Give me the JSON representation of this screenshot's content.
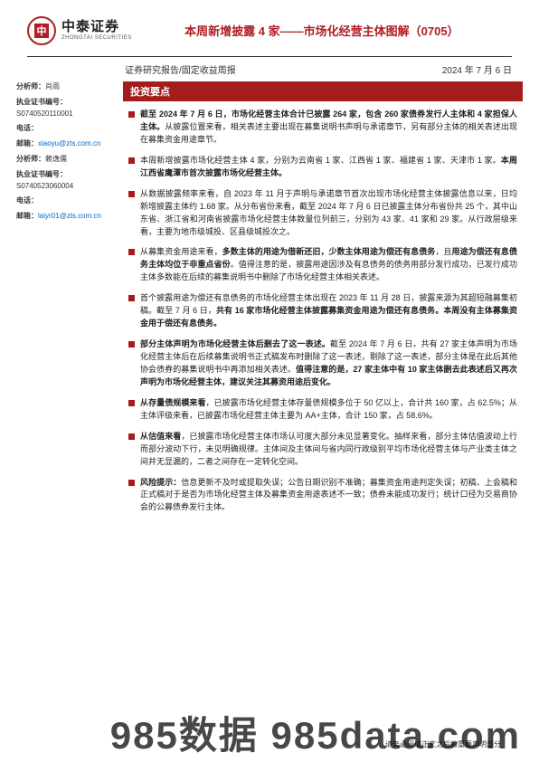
{
  "logo": {
    "cn": "中泰证券",
    "en": "ZHONGTAI SECURITIES"
  },
  "title": "本周新增披露 4 家——市场化经营主体图解（0705）",
  "subhead": {
    "left": "证券研究报告/固定收益周报",
    "right": "2024 年 7 月 6 日"
  },
  "sidebar": {
    "analyst1": {
      "name_label": "分析师：",
      "name": "肖雨",
      "cert_label": "执业证书编号：",
      "cert": "S0740520110001",
      "tel_label": "电话：",
      "email_label": "邮箱：",
      "email": "xiaoyu@zts.com.cn"
    },
    "analyst2": {
      "name_label": "分析师：",
      "name": "赖逸儒",
      "cert_label": "执业证书编号：",
      "cert": "S0740523060004",
      "tel_label": "电话：",
      "email_label": "邮箱：",
      "email": "laiyr01@zts.com.cn"
    }
  },
  "section_title": "投资要点",
  "bullets": [
    "<span class='bold'>截至 2024 年 7 月 6 日，市场化经营主体合计已披露 264 家，包含 260 家债券发行人主体和 4 家担保人主体。</span>从披露位置来看，相关表述主要出现在募集说明书声明与承诺章节，另有部分主体的相关表述出现在募集资金用途章节。",
    "本周新增披露市场化经营主体 4 家，分别为云南省 1 家、江西省 1 家、福建省 1 家、天津市 1 家。<span class='bold'>本周江西省鹰潭市首次披露市场化经营主体。</span>",
    "从数据披露频率来看，自 2023 年 11 月于声明与承诺章节首次出现市场化经营主体披露信息以来，日均新增披露主体约 1.68 家。从分布省份来看，截至 2024 年 7 月 6 日已披露主体分布省份共 25 个，其中山东省、浙江省和河南省披露市场化经营主体数量位列前三，分别为 43 家、41 家和 29 家。从行政层级来看，主要为地市级城投、区县级城投次之。",
    "从募集资金用途来看，<span class='bold'>多数主体的用途为借新还旧，少数主体用途为偿还有息债务</span>，且<span class='bold'>用途为偿还有息债务主体均位于非重点省份</span>。值得注意的是，披露用途因涉及有息债务的债务用部分发行成功，已发行成功主体多数能在后续的募集说明书中删除了市场化经营主体相关表述。",
    "首个披露用途为偿还有息债务的市场化经营主体出现在 2023 年 11 月 28 日，披露来源为其超短融募集初稿。截至 7 月 6 日，<span class='bold'>共有 16 家市场化经营主体披露募集资金用途为偿还有息债务。本周没有主体募集资金用于偿还有息债务。</span>",
    "<span class='bold'>部分主体声明为市场化经营主体后删去了这一表述。</span>截至 2024 年 7 月 6 日，共有 27 家主体声明为市场化经营主体后在后续募集说明书正式稿发布时删除了这一表述，剔除了这一表述，部分主体是在此后其他协会债券的募集说明书中再添加相关表述。<span class='bold'>值得注意的是，27 家主体中有 10 家主体删去此表述后又再次声明为市场化经营主体，建议关注其募资用途后变化。</span>",
    "<span class='bold'>从存量债规模来看</span>，已披露市场化经营主体存量债规模多位于 50 亿以上，合计共 160 家，占 62.5%；从主体评级来看，已披露市场化经营主体主要为 AA+主体，合计 150 家，占 58.6%。",
    "<span class='bold'>从估值来看</span>，已披露市场化经营主体市场认可度大部分未见显著变化。抽样来看，部分主体估值波动上行而部分波动下行，未见明确规律。主体间及主体间与省内同行政级别平均市场化经营主体与产业类主体之间并无显漏的，二者之间存在一定转化空间。",
    "<span class='bold'>风险提示：</span>信息更新不及时或提取失误；公告日期识别不准确；募集资金用途判定失误；初稿、上会稿和正式稿对于是否为市场化经营主体及募集资金用途表述不一致；债券未能成功发行；统计口径为交易商协会的公募债券发行主体。"
  ],
  "footer_note": "请务必阅读正文之后的重要声明部分",
  "watermark": "985数据 985data.com",
  "colors": {
    "brand_red": "#a51c1c",
    "title_red": "#b01e23",
    "text": "#222222",
    "link": "#0066cc",
    "bg": "#ffffff"
  }
}
